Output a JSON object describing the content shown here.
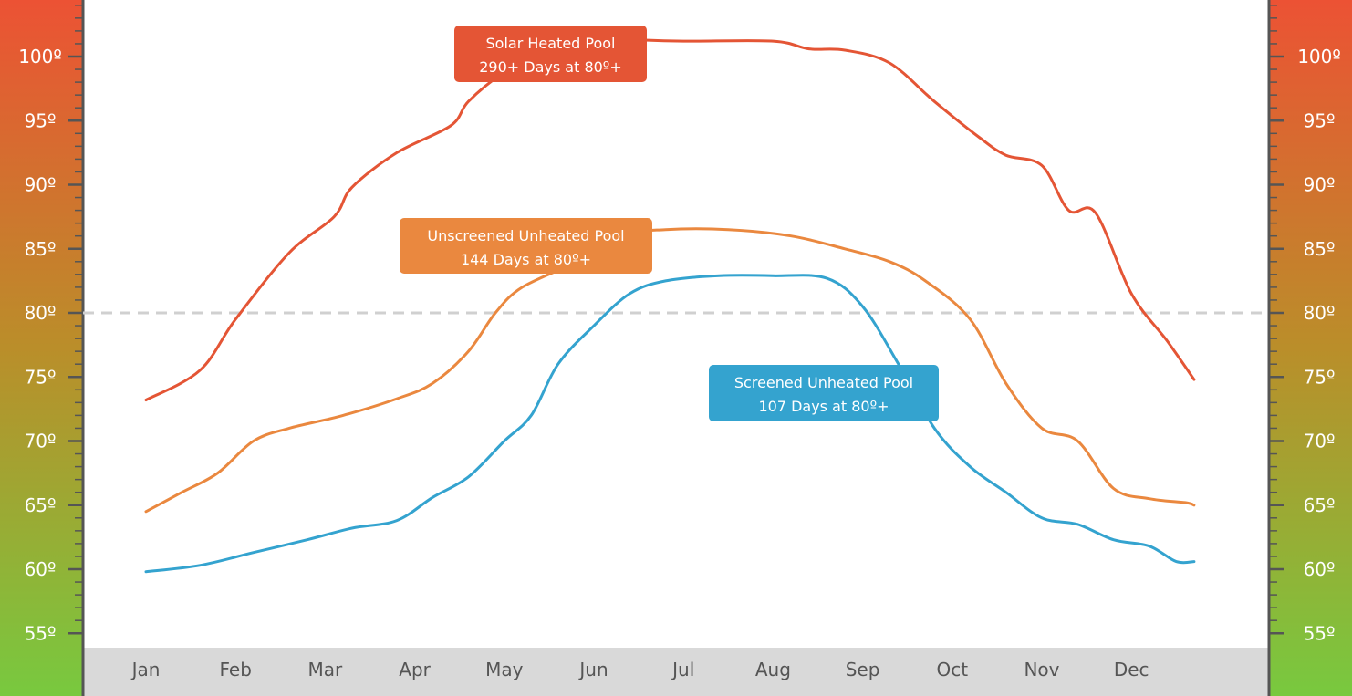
{
  "chart_data": {
    "type": "line",
    "title": "",
    "xlabel": "",
    "ylabel": "",
    "ylim": [
      52,
      104
    ],
    "y_ticks": [
      100,
      95,
      90,
      85,
      80,
      75,
      70,
      65,
      60,
      55
    ],
    "y_tick_labels": [
      "100º",
      "95º",
      "90º",
      "85º",
      "80º",
      "75º",
      "70º",
      "65º",
      "60º",
      "55º"
    ],
    "categories": [
      "Jan",
      "Feb",
      "Mar",
      "Apr",
      "May",
      "Jun",
      "Jul",
      "Aug",
      "Sep",
      "Oct",
      "Nov",
      "Dec"
    ],
    "reference_line": {
      "value": 80,
      "style": "dashed"
    },
    "series": [
      {
        "name": "Solar Heated Pool",
        "summary": "290+ Days at 80º+",
        "color": "#e45535",
        "x": [
          0,
          0.6,
          1.0,
          1.6,
          2.1,
          2.3,
          2.8,
          3.4,
          3.6,
          4.0,
          4.5,
          5.0,
          5.5,
          6.0,
          7.0,
          7.4,
          7.8,
          8.3,
          8.8,
          9.3,
          9.6,
          10.0,
          10.3,
          10.6,
          11.0,
          11.4,
          11.7
        ],
        "values": [
          73.2,
          75.5,
          79.5,
          84.7,
          87.5,
          89.8,
          92.5,
          94.6,
          96.5,
          98.8,
          100.8,
          101.5,
          101.3,
          101.2,
          101.2,
          100.6,
          100.5,
          99.5,
          96.5,
          93.7,
          92.3,
          91.5,
          88.0,
          87.8,
          81.5,
          77.8,
          74.8
        ]
      },
      {
        "name": "Unscreened Unheated Pool",
        "summary": "144 Days at 80º+",
        "color": "#ea883f",
        "x": [
          0,
          0.4,
          0.8,
          1.2,
          1.6,
          2.2,
          2.8,
          3.2,
          3.6,
          3.9,
          4.2,
          4.8,
          5.2,
          5.8,
          6.5,
          7.2,
          7.8,
          8.3,
          8.7,
          9.2,
          9.6,
          10.0,
          10.4,
          10.8,
          11.2,
          11.6,
          11.7
        ],
        "values": [
          64.5,
          66.0,
          67.5,
          70.0,
          71.0,
          72.0,
          73.3,
          74.5,
          77.0,
          80.0,
          82.0,
          84.0,
          86.0,
          86.5,
          86.5,
          86.0,
          85.0,
          84.0,
          82.5,
          79.5,
          74.5,
          71.0,
          70.0,
          66.3,
          65.5,
          65.2,
          65.0
        ]
      },
      {
        "name": "Screened Unheated Pool",
        "summary": "107 Days at 80º+",
        "color": "#34a3cf",
        "x": [
          0,
          0.6,
          1.2,
          1.8,
          2.3,
          2.8,
          3.2,
          3.6,
          4.0,
          4.3,
          4.6,
          5.0,
          5.4,
          5.8,
          6.4,
          7.0,
          7.6,
          8.0,
          8.4,
          8.8,
          9.2,
          9.6,
          10.0,
          10.4,
          10.8,
          11.2,
          11.5,
          11.7
        ],
        "values": [
          59.8,
          60.3,
          61.3,
          62.3,
          63.2,
          63.8,
          65.6,
          67.2,
          70.0,
          72.0,
          76.0,
          79.0,
          81.5,
          82.5,
          82.9,
          82.9,
          82.7,
          80.5,
          76.0,
          71.0,
          68.0,
          66.0,
          64.0,
          63.5,
          62.3,
          61.8,
          60.6,
          60.6
        ]
      }
    ],
    "annotations": [
      {
        "series": "Solar Heated Pool",
        "title": "Solar Heated Pool",
        "subtitle": "290+ Days at 80º+",
        "color": "#e45535"
      },
      {
        "series": "Unscreened Unheated Pool",
        "title": "Unscreened Unheated Pool",
        "subtitle": "144 Days at 80º+",
        "color": "#ea883f"
      },
      {
        "series": "Screened Unheated Pool",
        "title": "Screened Unheated Pool",
        "subtitle": "107 Days at 80º+",
        "color": "#34a3cf"
      }
    ],
    "gradient_colors": {
      "top": "#ec5234",
      "middle": "#ba8e2a",
      "bottom": "#78c93f"
    },
    "axis_band_color": "#d9d9d9"
  }
}
